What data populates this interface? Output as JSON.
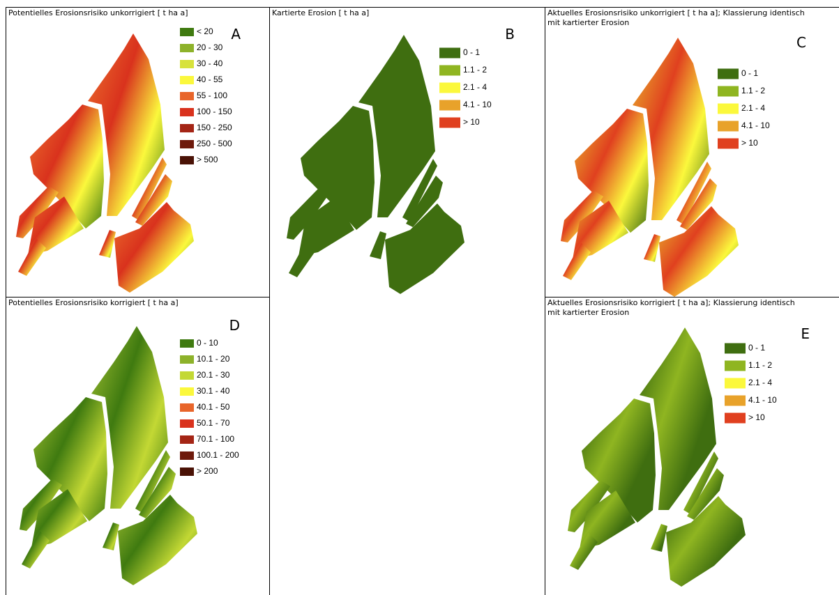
{
  "panels": [
    {
      "title_lines": [
        "Potentielles Erosionsrisiko unkorrigiert [ t ha a]"
      ],
      "letter": "A",
      "legend": [
        {
          "label": "< 20",
          "color": "#3f7a10"
        },
        {
          "label": "20 - 30",
          "color": "#8db22a"
        },
        {
          "label": "30 - 40",
          "color": "#d7e23c"
        },
        {
          "label": "40 - 55",
          "color": "#fbf83c"
        },
        {
          "label": "55 - 100",
          "color": "#e8652a"
        },
        {
          "label": "100 - 150",
          "color": "#d9321d"
        },
        {
          "label": "150 - 250",
          "color": "#a42515"
        },
        {
          "label": "250 - 500",
          "color": "#6e1a0c"
        },
        {
          "label": "> 500",
          "color": "#4a1206"
        }
      ]
    },
    {
      "title_lines": [
        "Kartierte Erosion [ t ha a]"
      ],
      "letter": "B",
      "legend": [
        {
          "label": "0 - 1",
          "color": "#3f6e10"
        },
        {
          "label": "1.1 - 2",
          "color": "#8fb521"
        },
        {
          "label": "2.1 - 4",
          "color": "#fbf83c"
        },
        {
          "label": "4.1 - 10",
          "color": "#e8a22a"
        },
        {
          "label": "> 10",
          "color": "#e0401f"
        }
      ]
    },
    {
      "title_lines": [
        "Aktuelles Erosionsrisiko unkorrigiert [ t ha a]; Klassierung identisch",
        "mit kartierter Erosion"
      ],
      "letter": "C",
      "legend": [
        {
          "label": "0 - 1",
          "color": "#3f6e10"
        },
        {
          "label": "1.1 - 2",
          "color": "#8fb521"
        },
        {
          "label": "2.1 - 4",
          "color": "#fbf83c"
        },
        {
          "label": "4.1 - 10",
          "color": "#e8a22a"
        },
        {
          "label": "> 10",
          "color": "#e0401f"
        }
      ]
    },
    {
      "title_lines": [
        "Potentielles Erosionsrisiko korrigiert [ t ha a]"
      ],
      "letter": "D",
      "legend": [
        {
          "label": "0 - 10",
          "color": "#3f7a10"
        },
        {
          "label": "10.1 - 20",
          "color": "#8db22a"
        },
        {
          "label": "20.1 - 30",
          "color": "#c3d834"
        },
        {
          "label": "30.1 - 40",
          "color": "#fbf83c"
        },
        {
          "label": "40.1 - 50",
          "color": "#e8652a"
        },
        {
          "label": "50.1 - 70",
          "color": "#d9321d"
        },
        {
          "label": "70.1 - 100",
          "color": "#a42515"
        },
        {
          "label": "100.1 - 200",
          "color": "#6e1a0c"
        },
        {
          "label": "> 200",
          "color": "#4a1206"
        }
      ]
    },
    {
      "title_lines": [
        "Aktuelles Erosionsrisiko korrigiert [ t ha a]; Klassierung identisch",
        "mit kartierter Erosion"
      ],
      "letter": "E",
      "legend": [
        {
          "label": "0 - 1",
          "color": "#3f6e10"
        },
        {
          "label": "1.1 - 2",
          "color": "#8fb521"
        },
        {
          "label": "2.1 - 4",
          "color": "#fbf83c"
        },
        {
          "label": "4.1 - 10",
          "color": "#e8a22a"
        },
        {
          "label": "> 10",
          "color": "#e0401f"
        }
      ]
    }
  ]
}
